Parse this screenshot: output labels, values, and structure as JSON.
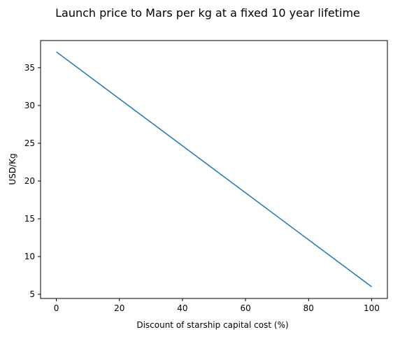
{
  "chart_data": {
    "type": "line",
    "title": "Launch price to Mars per kg at a fixed 10 year lifetime",
    "xlabel": "Discount of starship capital cost (%)",
    "ylabel": "USD/Kg",
    "xlim": [
      -5,
      105
    ],
    "ylim": [
      4.45,
      38.6
    ],
    "xticks": [
      0,
      20,
      40,
      60,
      80,
      100
    ],
    "yticks": [
      5,
      10,
      15,
      20,
      25,
      30,
      35
    ],
    "xtick_labels": [
      "0",
      "20",
      "40",
      "60",
      "80",
      "100"
    ],
    "ytick_labels": [
      "5",
      "10",
      "15",
      "20",
      "25",
      "30",
      "35"
    ],
    "grid": false,
    "legend": false,
    "series": [
      {
        "color": "#1f77b4",
        "x": [
          0,
          100
        ],
        "y": [
          37.1,
          6.0
        ]
      }
    ]
  }
}
